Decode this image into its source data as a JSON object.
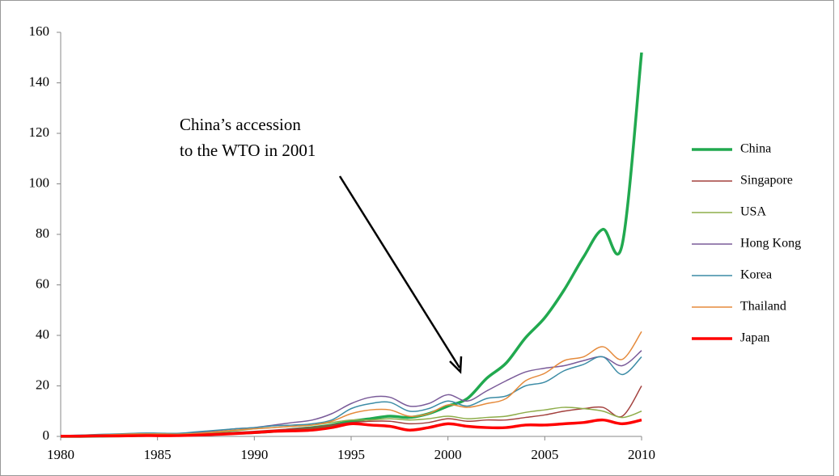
{
  "chart_data": {
    "type": "line",
    "annotation": [
      "China’s accession",
      "to the WTO in 2001"
    ],
    "x": [
      1980,
      1981,
      1982,
      1983,
      1984,
      1985,
      1986,
      1987,
      1988,
      1989,
      1990,
      1991,
      1992,
      1993,
      1994,
      1995,
      1996,
      1997,
      1998,
      1999,
      2000,
      2001,
      2002,
      2003,
      2004,
      2005,
      2006,
      2007,
      2008,
      2009,
      2010
    ],
    "xlim": [
      1980,
      2010
    ],
    "xticks": [
      1980,
      1985,
      1990,
      1995,
      2000,
      2005,
      2010
    ],
    "ylim": [
      0,
      160
    ],
    "yticks": [
      0,
      20,
      40,
      60,
      80,
      100,
      120,
      140,
      160
    ],
    "series": [
      {
        "name": "China",
        "color": "#21a94f",
        "width": 3.5,
        "values": [
          0,
          0,
          0.1,
          0.2,
          0.3,
          0.5,
          0.4,
          0.7,
          1,
          1.2,
          1.5,
          2,
          2.8,
          3.5,
          4.5,
          6,
          7,
          8,
          7.5,
          9,
          12,
          15,
          23,
          29,
          39,
          47,
          58,
          71,
          82,
          76,
          152
        ]
      },
      {
        "name": "Singapore",
        "color": "#a3403d",
        "width": 1.5,
        "values": [
          0.2,
          0.3,
          0.4,
          0.5,
          0.6,
          0.5,
          0.5,
          0.8,
          1.2,
          1.6,
          2,
          2.5,
          3,
          3.5,
          4.5,
          5.5,
          6,
          6,
          5,
          5.5,
          7,
          6,
          6.5,
          6.5,
          7.5,
          8.5,
          10,
          11,
          11.5,
          8,
          20
        ]
      },
      {
        "name": "USA",
        "color": "#8ead4a",
        "width": 1.5,
        "values": [
          0.3,
          0.4,
          0.5,
          0.6,
          0.8,
          0.8,
          0.8,
          1.2,
          1.6,
          2.2,
          3,
          3.5,
          4,
          4.5,
          5.5,
          6.5,
          6.5,
          7,
          6.5,
          7,
          8,
          7,
          7.5,
          8,
          9.5,
          10.5,
          11.5,
          11,
          10,
          7.5,
          10
        ]
      },
      {
        "name": "Hong Kong",
        "color": "#7a5b99",
        "width": 1.5,
        "values": [
          0.3,
          0.5,
          0.7,
          0.9,
          1.2,
          1.2,
          1,
          1.5,
          2.2,
          3,
          3.5,
          4.5,
          5.5,
          6.5,
          9,
          13,
          15.5,
          15.5,
          12,
          13,
          16.5,
          14,
          18,
          22,
          25.5,
          27,
          28,
          30,
          31.5,
          28,
          34
        ]
      },
      {
        "name": "Korea",
        "color": "#3c8ca6",
        "width": 1.5,
        "values": [
          0.3,
          0.5,
          0.8,
          1,
          1.3,
          1.3,
          1.2,
          1.8,
          2.4,
          3,
          3.5,
          4.2,
          4.5,
          5,
          6.5,
          11,
          13,
          13.5,
          10,
          11,
          14,
          12,
          15,
          16,
          20,
          21.5,
          26,
          28.5,
          31.5,
          24.5,
          31.5
        ]
      },
      {
        "name": "Thailand",
        "color": "#e58a3b",
        "width": 1.5,
        "values": [
          0.2,
          0.4,
          0.6,
          0.8,
          1,
          1,
          0.9,
          1.2,
          1.8,
          2.5,
          3,
          3.5,
          4,
          4.5,
          6,
          9,
          10.5,
          10.5,
          8,
          9,
          12.5,
          11.5,
          13,
          15,
          22,
          25,
          30,
          31.5,
          35.5,
          30.5,
          41.5
        ]
      },
      {
        "name": "Japan",
        "color": "#ff0000",
        "width": 3.5,
        "values": [
          0.1,
          0.1,
          0.2,
          0.2,
          0.3,
          0.3,
          0.3,
          0.5,
          0.8,
          1.1,
          1.5,
          2,
          2.2,
          2.5,
          3.5,
          5,
          4.5,
          4,
          2.5,
          3.5,
          5,
          4,
          3.5,
          3.5,
          4.5,
          4.5,
          5,
          5.5,
          6.5,
          5,
          6.5
        ]
      }
    ]
  }
}
